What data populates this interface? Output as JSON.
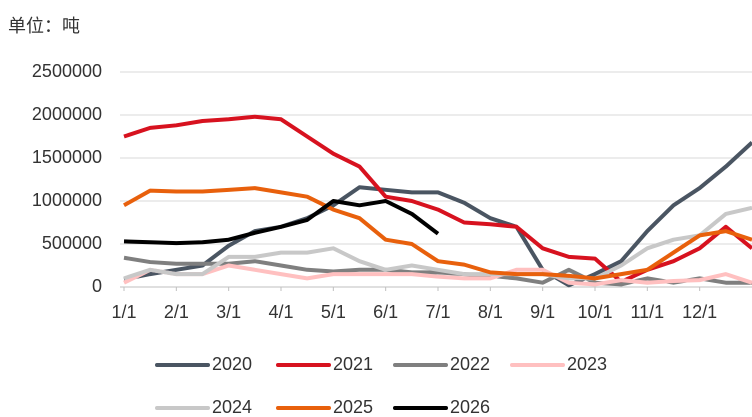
{
  "chart_data": {
    "type": "line",
    "title": "单位：吨",
    "x": [
      0,
      0.5,
      1,
      1.5,
      2,
      2.5,
      3,
      3.5,
      4,
      4.5,
      5,
      5.5,
      6,
      6.5,
      7,
      7.5,
      8,
      8.5,
      9,
      9.5,
      10,
      10.5,
      11,
      11.5,
      12
    ],
    "xlim": [
      0,
      12
    ],
    "xticks": [
      {
        "value": 0,
        "label": "1/1"
      },
      {
        "value": 1,
        "label": "2/1"
      },
      {
        "value": 2,
        "label": "3/1"
      },
      {
        "value": 3,
        "label": "4/1"
      },
      {
        "value": 4,
        "label": "5/1"
      },
      {
        "value": 5,
        "label": "6/1"
      },
      {
        "value": 6,
        "label": "7/1"
      },
      {
        "value": 7,
        "label": "8/1"
      },
      {
        "value": 8,
        "label": "9/1"
      },
      {
        "value": 9,
        "label": "10/1"
      },
      {
        "value": 10,
        "label": "11/1"
      },
      {
        "value": 11,
        "label": "12/1"
      }
    ],
    "ylim": [
      0,
      2500000
    ],
    "yticks": [
      0,
      500000,
      1000000,
      1500000,
      2000000,
      2500000
    ],
    "grid": true,
    "legend": "bottom",
    "series": [
      {
        "name": "2020",
        "color": "#4a5562",
        "values": [
          90000,
          150000,
          200000,
          250000,
          480000,
          650000,
          700000,
          800000,
          950000,
          1160000,
          1130000,
          1100000,
          1100000,
          980000,
          800000,
          700000,
          200000,
          20000,
          150000,
          300000,
          650000,
          950000,
          1150000,
          1400000,
          1680000
        ]
      },
      {
        "name": "2021",
        "color": "#d7121f",
        "values": [
          1750000,
          1850000,
          1880000,
          1930000,
          1950000,
          1980000,
          1950000,
          1750000,
          1550000,
          1400000,
          1050000,
          1000000,
          900000,
          750000,
          730000,
          700000,
          450000,
          350000,
          330000,
          60000,
          200000,
          300000,
          450000,
          700000,
          450000
        ]
      },
      {
        "name": "2022",
        "color": "#7f7f7f",
        "values": [
          340000,
          290000,
          270000,
          270000,
          270000,
          300000,
          250000,
          200000,
          180000,
          200000,
          200000,
          170000,
          170000,
          150000,
          130000,
          100000,
          50000,
          200000,
          50000,
          30000,
          100000,
          50000,
          100000,
          50000,
          50000
        ]
      },
      {
        "name": "2023",
        "color": "#ffc0c0",
        "values": [
          50000,
          200000,
          150000,
          150000,
          250000,
          200000,
          150000,
          100000,
          150000,
          150000,
          150000,
          150000,
          120000,
          100000,
          100000,
          200000,
          200000,
          50000,
          30000,
          80000,
          50000,
          70000,
          80000,
          150000,
          50000
        ]
      },
      {
        "name": "2024",
        "color": "#c8c8c8",
        "values": [
          100000,
          200000,
          150000,
          150000,
          350000,
          350000,
          400000,
          400000,
          450000,
          300000,
          200000,
          250000,
          200000,
          150000,
          150000,
          150000,
          150000,
          100000,
          100000,
          250000,
          450000,
          550000,
          600000,
          850000,
          920000
        ]
      },
      {
        "name": "2025",
        "color": "#e8600c",
        "values": [
          950000,
          1120000,
          1110000,
          1110000,
          1130000,
          1150000,
          1100000,
          1050000,
          900000,
          800000,
          550000,
          500000,
          300000,
          260000,
          170000,
          150000,
          150000,
          130000,
          100000,
          150000,
          200000,
          400000,
          600000,
          650000,
          550000
        ]
      },
      {
        "name": "2026",
        "color": "#000000",
        "values": [
          530000,
          520000,
          510000,
          520000,
          550000,
          630000,
          700000,
          780000,
          1000000,
          950000,
          1000000,
          850000,
          620000,
          null,
          null,
          null,
          null,
          null,
          null,
          null,
          null,
          null,
          null,
          null,
          null
        ]
      }
    ]
  }
}
